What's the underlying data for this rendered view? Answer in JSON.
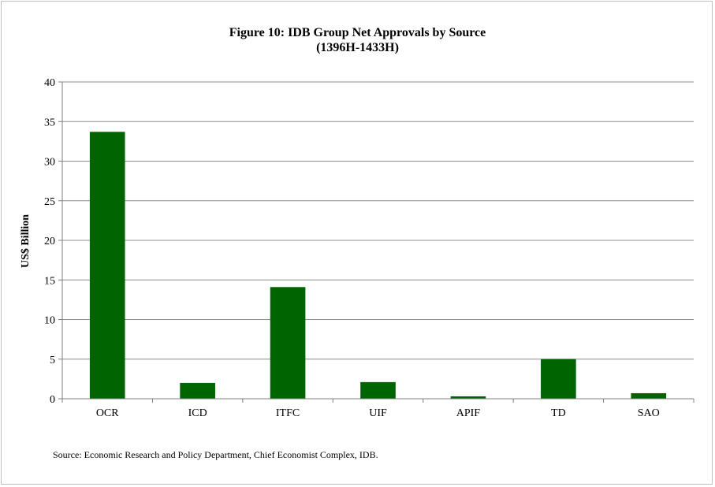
{
  "chart_data": {
    "type": "bar",
    "title_line1": "Figure 10:  IDB Group Net Approvals by Source",
    "title_line2": "(1396H-1433H)",
    "xlabel": "",
    "ylabel": "US$ Billion",
    "categories": [
      "OCR",
      "ICD",
      "ITFC",
      "UIF",
      "APIF",
      "TD",
      "SAO"
    ],
    "values": [
      33.7,
      2.0,
      14.1,
      2.1,
      0.3,
      5.0,
      0.7
    ],
    "ylim": [
      0,
      40
    ],
    "yticks": [
      "0",
      "5",
      "10",
      "15",
      "20",
      "25",
      "30",
      "35",
      "40"
    ],
    "bar_color": "#006400",
    "grid": true,
    "legend": "none"
  },
  "source_note": "Source: Economic Research and Policy Department, Chief Economist Complex, IDB."
}
